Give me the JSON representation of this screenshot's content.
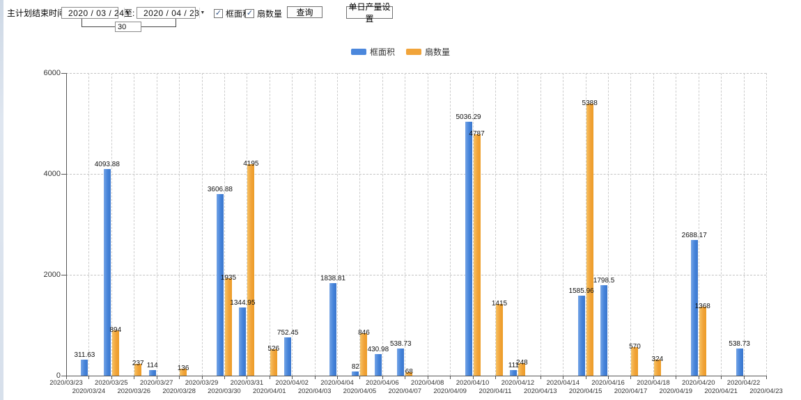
{
  "icons": {
    "dropdown_arrow": "▼",
    "checkbox_check": "✓"
  },
  "toolbar": {
    "plan_end_label": "主计划结束时间:",
    "date_from": "2020 / 03 / 24",
    "to_label": "至:",
    "date_to": "2020 / 04 / 23",
    "interval_value": "30",
    "checkboxes": [
      {
        "label": "框面积",
        "checked": true
      },
      {
        "label": "扇数量",
        "checked": true
      }
    ],
    "query_button": "查询",
    "daily_output_button": "单日产量设置"
  },
  "legend": {
    "items": [
      {
        "label": "框面积",
        "color": "#4b87dc"
      },
      {
        "label": "扇数量",
        "color": "#f1a43a"
      }
    ]
  },
  "chart_data": {
    "type": "bar",
    "title": "",
    "xlabel": "",
    "ylabel": "",
    "ylim": [
      0,
      6000
    ],
    "yticks": [
      0,
      2000,
      4000,
      6000
    ],
    "grid": "dashed",
    "legend_position": "top",
    "categories": [
      "2020/03/23",
      "2020/03/24",
      "2020/03/25",
      "2020/03/26",
      "2020/03/27",
      "2020/03/28",
      "2020/03/29",
      "2020/03/30",
      "2020/03/31",
      "2020/04/01",
      "2020/04/02",
      "2020/04/03",
      "2020/04/04",
      "2020/04/05",
      "2020/04/06",
      "2020/04/07",
      "2020/04/08",
      "2020/04/09",
      "2020/04/10",
      "2020/04/11",
      "2020/04/12",
      "2020/04/13",
      "2020/04/14",
      "2020/04/15",
      "2020/04/16",
      "2020/04/17",
      "2020/04/18",
      "2020/04/19",
      "2020/04/20",
      "2020/04/21",
      "2020/04/22",
      "2020/04/23"
    ],
    "series": [
      {
        "name": "框面积",
        "color": "#4b87dc",
        "values": [
          null,
          311.63,
          4093.88,
          null,
          114,
          null,
          null,
          3606.88,
          1344.95,
          null,
          752.45,
          null,
          1838.81,
          82,
          430.98,
          538.73,
          null,
          null,
          5036.29,
          null,
          111,
          null,
          null,
          1585.96,
          1798.5,
          null,
          null,
          null,
          2688.17,
          null,
          538.73,
          null
        ]
      },
      {
        "name": "扇数量",
        "color": "#f1a43a",
        "values": [
          null,
          null,
          894,
          237,
          null,
          136,
          null,
          1935,
          4195,
          526,
          null,
          null,
          null,
          846,
          null,
          68,
          null,
          null,
          4787,
          1415,
          248,
          null,
          null,
          5388,
          null,
          570,
          324,
          null,
          1368,
          null,
          null,
          null
        ]
      }
    ]
  }
}
